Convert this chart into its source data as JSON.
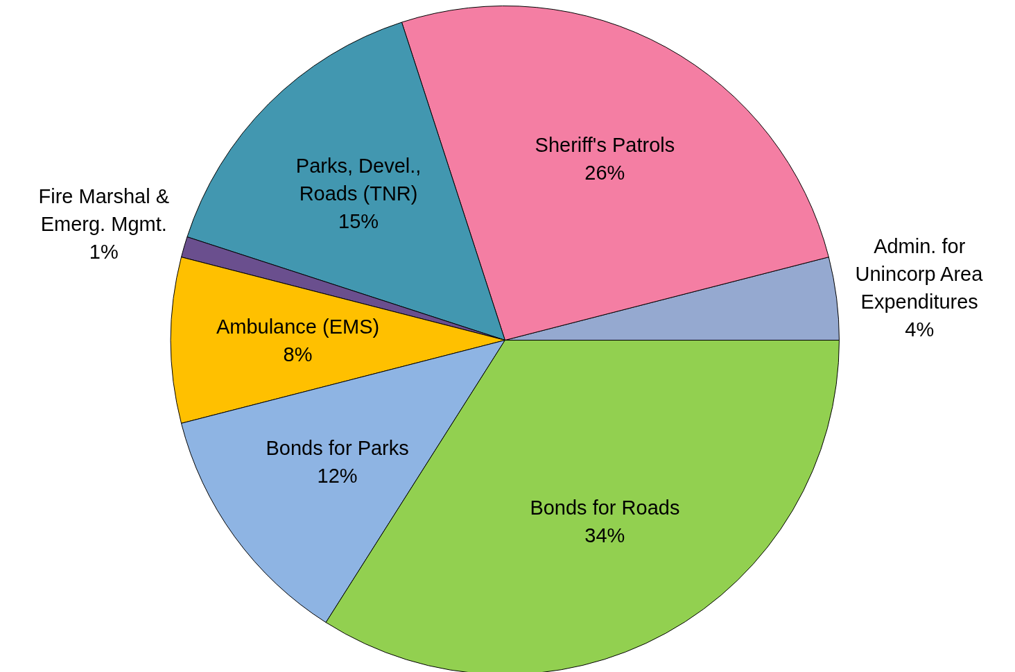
{
  "chart_data": {
    "type": "pie",
    "categories": [
      "Admin. for\nUnincorp Area\nExpenditures",
      "Sheriff's Patrols",
      "Parks, Devel.,\nRoads (TNR)",
      "Fire Marshal &\nEmerg. Mgmt.",
      "Ambulance (EMS)",
      "Bonds for Parks",
      "Bonds for Roads"
    ],
    "values": [
      4,
      26,
      15,
      1,
      8,
      12,
      34
    ],
    "value_labels": [
      "4%",
      "26%",
      "15%",
      "1%",
      "8%",
      "12%",
      "34%"
    ],
    "colors": [
      "#95a9d0",
      "#f47ea3",
      "#4297b0",
      "#6a4f8e",
      "#ffc000",
      "#8eb4e3",
      "#92d050"
    ]
  }
}
